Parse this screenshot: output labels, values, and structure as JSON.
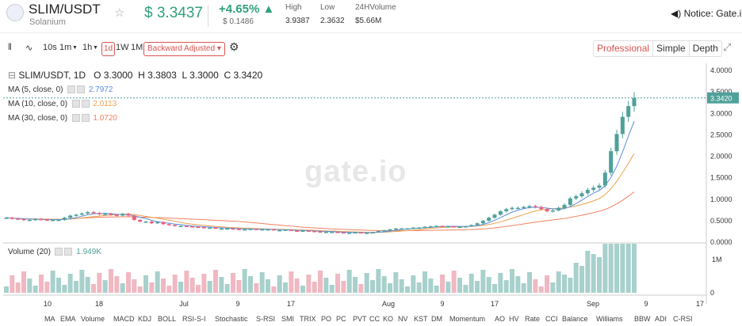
{
  "header": {
    "pair": "SLIM/USDT",
    "name": "Solanium",
    "price": "$ 3.3437",
    "change": "+4.65%",
    "change_abs": "$ 0.1486",
    "high_label": "High",
    "high": "3.9387",
    "low_label": "Low",
    "low": "2.3632",
    "vol_label": "24HVolume",
    "vol": "$5.66M",
    "notice": "Notice:  Gate.i"
  },
  "toolbar": {
    "i10s": "10s",
    "i1m": "1m",
    "i1h": "1h",
    "i1d": "1d",
    "i1w": "1W",
    "i1M": "1M",
    "adj": "Backward Adjusted",
    "pro": "Professional",
    "simple": "Simple",
    "depth": "Depth"
  },
  "legend": {
    "main": "SLIM/USDT, 1D",
    "o": "O 3.3000",
    "h": "H 3.3803",
    "l": "L 3.3000",
    "c": "C 3.3420",
    "ma5": "MA (5, close, 0)",
    "ma5v": "2.7972",
    "ma10": "MA (10, close, 0)",
    "ma10v": "2.0113",
    "ma30": "MA (30, close, 0)",
    "ma30v": "1.0720",
    "vol": "Volume (20)",
    "volv": "1.949K",
    "watermark": "gate.io"
  },
  "colors": {
    "up": "#4fa19a",
    "down": "#e6627c",
    "ma5": "#5b8de0",
    "ma10": "#f0a04c",
    "ma30": "#f08060"
  },
  "indicators": [
    "MA",
    "EMA",
    "Volume",
    "MACD",
    "KDJ",
    "BOLL",
    "RSI-S-I",
    "Stochastic",
    "S-RSI",
    "SMI",
    "TRIX",
    "PO",
    "PC",
    "PVT",
    "CC",
    "KO",
    "NV",
    "KST",
    "DM",
    "Momentum",
    "AO",
    "HV",
    "Rate",
    "CCI",
    "Balance",
    "Williams",
    "BBW",
    "ADI",
    "C-RSI"
  ],
  "chart_data": {
    "type": "candlestick",
    "title": "SLIM/USDT, 1D",
    "x_tick_labels": [
      "10",
      "18",
      "Jul",
      "9",
      "17",
      "Aug",
      "9",
      "17",
      "Sep",
      "9",
      "17"
    ],
    "y_ticks": [
      0.0,
      0.5,
      1.0,
      1.5,
      2.0,
      2.5,
      3.0,
      3.5,
      4.0
    ],
    "ylim": [
      0,
      4.0
    ],
    "last_price": "3.3420",
    "volume_ticks": [
      "1M",
      "0"
    ],
    "close": [
      0.55,
      0.53,
      0.52,
      0.5,
      0.5,
      0.52,
      0.51,
      0.49,
      0.5,
      0.5,
      0.55,
      0.6,
      0.62,
      0.65,
      0.68,
      0.66,
      0.63,
      0.64,
      0.62,
      0.6,
      0.64,
      0.6,
      0.5,
      0.46,
      0.46,
      0.42,
      0.45,
      0.4,
      0.38,
      0.36,
      0.36,
      0.35,
      0.34,
      0.33,
      0.32,
      0.32,
      0.3,
      0.3,
      0.3,
      0.29,
      0.28,
      0.28,
      0.29,
      0.28,
      0.28,
      0.28,
      0.26,
      0.26,
      0.27,
      0.25,
      0.24,
      0.25,
      0.24,
      0.23,
      0.22,
      0.22,
      0.22,
      0.21,
      0.2,
      0.2,
      0.21,
      0.2,
      0.2,
      0.21,
      0.24,
      0.26,
      0.28,
      0.3,
      0.3,
      0.3,
      0.32,
      0.32,
      0.34,
      0.35,
      0.36,
      0.35,
      0.35,
      0.34,
      0.34,
      0.35,
      0.38,
      0.42,
      0.48,
      0.55,
      0.62,
      0.7,
      0.75,
      0.78,
      0.78,
      0.8,
      0.82,
      0.8,
      0.75,
      0.7,
      0.72,
      0.78,
      0.85,
      1.0,
      1.05,
      1.12,
      1.2,
      1.25,
      1.3,
      1.6,
      2.1,
      2.5,
      2.9,
      3.15,
      3.342
    ]
  }
}
